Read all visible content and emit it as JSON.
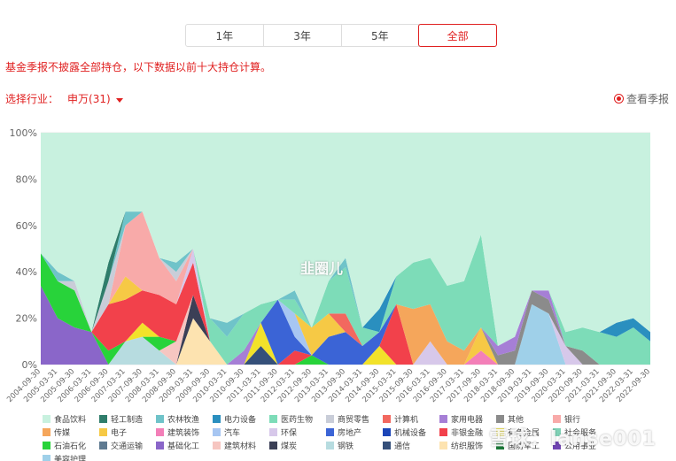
{
  "tabs": [
    {
      "label": "1年",
      "active": false
    },
    {
      "label": "3年",
      "active": false
    },
    {
      "label": "5年",
      "active": false
    },
    {
      "label": "全部",
      "active": true
    }
  ],
  "notice": "基金季报不披露全部持仓，以下数据以前十大持仓计算。",
  "industry": {
    "label": "选择行业：",
    "value": "申万(31)"
  },
  "report_link": "查看季报",
  "watermark": "雪球：lanse001",
  "center_mark": "韭圈儿",
  "chart_data": {
    "type": "area",
    "stacked": true,
    "ylim": [
      0,
      100
    ],
    "yticks": [
      "0%",
      "20%",
      "40%",
      "60%",
      "80%",
      "100%"
    ],
    "x": [
      "2004-09-30",
      "2005-03-31",
      "2005-09-30",
      "2006-03-31",
      "2006-09-30",
      "2007-03-31",
      "2007-09-30",
      "2008-03-31",
      "2008-09-30",
      "2009-03-31",
      "2009-09-30",
      "2010-03-31",
      "2010-09-30",
      "2011-03-31",
      "2011-09-30",
      "2012-03-31",
      "2012-09-30",
      "2013-03-31",
      "2013-09-30",
      "2014-03-31",
      "2014-09-30",
      "2015-03-31",
      "2015-09-30",
      "2016-03-31",
      "2016-09-30",
      "2017-03-31",
      "2017-09-30",
      "2018-03-31",
      "2018-09-30",
      "2019-03-31",
      "2019-09-30",
      "2020-03-31",
      "2020-09-30",
      "2021-03-31",
      "2021-09-30",
      "2022-03-31",
      "2022-09-30"
    ],
    "series": [
      {
        "name": "食品饮料",
        "color": "#c8f1df",
        "values": [
          20,
          18,
          14,
          20,
          18,
          14,
          6,
          10,
          8,
          0,
          0,
          6,
          4,
          0,
          0,
          4,
          0,
          0,
          4,
          0,
          0,
          0,
          0,
          4,
          0,
          0,
          8,
          60,
          40,
          44,
          52,
          44,
          40,
          38,
          40,
          42,
          60
        ]
      },
      {
        "name": "轻工制造",
        "color": "#2f7d6b",
        "values": [
          0,
          0,
          0,
          0,
          8,
          0,
          0,
          0,
          0,
          0,
          0,
          0,
          0,
          0,
          0,
          0,
          0,
          0,
          0,
          0,
          0,
          0,
          0,
          0,
          0,
          0,
          0,
          0,
          0,
          0,
          0,
          0,
          0,
          0,
          0,
          0,
          0
        ]
      },
      {
        "name": "农林牧渔",
        "color": "#6fc3c9",
        "values": [
          0,
          4,
          0,
          0,
          0,
          6,
          0,
          0,
          4,
          0,
          0,
          6,
          0,
          0,
          0,
          4,
          0,
          0,
          4,
          0,
          0,
          0,
          0,
          0,
          0,
          0,
          0,
          0,
          0,
          0,
          0,
          0,
          0,
          0,
          0,
          0,
          0
        ]
      },
      {
        "name": "电力设备",
        "color": "#2a8fbf",
        "values": [
          0,
          0,
          0,
          0,
          0,
          0,
          0,
          0,
          0,
          0,
          0,
          0,
          0,
          0,
          0,
          0,
          0,
          0,
          0,
          0,
          10,
          0,
          0,
          0,
          0,
          0,
          0,
          0,
          0,
          0,
          0,
          0,
          0,
          0,
          6,
          4,
          4
        ]
      },
      {
        "name": "医药生物",
        "color": "#7ddcb8",
        "values": [
          0,
          0,
          0,
          0,
          0,
          0,
          0,
          0,
          0,
          0,
          10,
          12,
          16,
          8,
          0,
          6,
          0,
          14,
          20,
          8,
          0,
          12,
          20,
          20,
          24,
          30,
          40,
          0,
          0,
          0,
          0,
          6,
          10,
          14,
          12,
          16,
          10
        ]
      },
      {
        "name": "商贸零售",
        "color": "#c9cdd8",
        "values": [
          0,
          0,
          4,
          0,
          10,
          0,
          0,
          0,
          4,
          0,
          0,
          0,
          0,
          0,
          0,
          0,
          0,
          0,
          0,
          0,
          0,
          0,
          0,
          0,
          0,
          0,
          0,
          0,
          0,
          0,
          0,
          0,
          0,
          0,
          0,
          0,
          0
        ]
      },
      {
        "name": "计算机",
        "color": "#f2685f",
        "values": [
          0,
          0,
          0,
          0,
          0,
          0,
          0,
          0,
          0,
          0,
          0,
          0,
          0,
          0,
          0,
          0,
          0,
          0,
          8,
          0,
          0,
          0,
          0,
          0,
          0,
          0,
          0,
          0,
          0,
          0,
          0,
          0,
          0,
          0,
          0,
          0,
          0
        ]
      },
      {
        "name": "家用电器",
        "color": "#a67fd6",
        "values": [
          0,
          0,
          0,
          0,
          0,
          0,
          0,
          0,
          0,
          0,
          0,
          0,
          6,
          0,
          0,
          0,
          0,
          0,
          0,
          0,
          0,
          0,
          0,
          0,
          0,
          0,
          0,
          4,
          6,
          0,
          4,
          0,
          0,
          0,
          0,
          0,
          0
        ]
      },
      {
        "name": "其他",
        "color": "#8b8b8b",
        "values": [
          0,
          0,
          0,
          0,
          0,
          0,
          0,
          0,
          0,
          0,
          0,
          0,
          0,
          0,
          0,
          0,
          0,
          0,
          0,
          0,
          0,
          0,
          0,
          0,
          0,
          0,
          0,
          4,
          6,
          6,
          6,
          0,
          6,
          0,
          0,
          0,
          0
        ]
      },
      {
        "name": "银行",
        "color": "#f8aaa9",
        "values": [
          0,
          0,
          0,
          0,
          0,
          22,
          34,
          16,
          10,
          0,
          0,
          0,
          0,
          0,
          0,
          0,
          0,
          0,
          0,
          0,
          0,
          0,
          0,
          0,
          0,
          0,
          0,
          0,
          0,
          0,
          0,
          0,
          0,
          0,
          0,
          0,
          0
        ]
      },
      {
        "name": "传媒",
        "color": "#f5a65b",
        "values": [
          0,
          0,
          0,
          0,
          0,
          0,
          0,
          0,
          0,
          0,
          0,
          0,
          0,
          0,
          0,
          0,
          0,
          0,
          0,
          0,
          0,
          0,
          24,
          16,
          10,
          6,
          0,
          0,
          0,
          0,
          0,
          0,
          0,
          0,
          0,
          0,
          0
        ]
      },
      {
        "name": "电子",
        "color": "#f6c945",
        "values": [
          0,
          0,
          0,
          0,
          0,
          10,
          0,
          0,
          0,
          0,
          0,
          0,
          0,
          0,
          0,
          0,
          12,
          10,
          0,
          0,
          0,
          0,
          0,
          0,
          0,
          0,
          10,
          0,
          0,
          0,
          0,
          0,
          0,
          0,
          0,
          0,
          0
        ]
      },
      {
        "name": "建筑装饰",
        "color": "#f37fb8",
        "values": [
          0,
          0,
          0,
          0,
          0,
          0,
          0,
          0,
          0,
          0,
          0,
          0,
          0,
          0,
          0,
          0,
          0,
          0,
          0,
          0,
          0,
          0,
          0,
          0,
          0,
          0,
          6,
          0,
          0,
          0,
          0,
          0,
          0,
          0,
          0,
          0,
          0
        ]
      },
      {
        "name": "汽车",
        "color": "#a7c6f2",
        "values": [
          0,
          0,
          0,
          0,
          0,
          0,
          0,
          0,
          0,
          0,
          0,
          0,
          0,
          0,
          0,
          10,
          0,
          0,
          0,
          0,
          0,
          0,
          0,
          0,
          0,
          0,
          0,
          0,
          0,
          0,
          0,
          0,
          0,
          0,
          0,
          0,
          0
        ]
      },
      {
        "name": "环保",
        "color": "#d7c8ea",
        "values": [
          0,
          0,
          0,
          0,
          0,
          0,
          0,
          0,
          0,
          6,
          0,
          0,
          0,
          0,
          0,
          0,
          0,
          0,
          0,
          0,
          0,
          0,
          0,
          10,
          0,
          0,
          0,
          0,
          0,
          0,
          0,
          8,
          0,
          0,
          0,
          0,
          0
        ]
      },
      {
        "name": "房地产",
        "color": "#3b64d6",
        "values": [
          0,
          0,
          0,
          0,
          0,
          0,
          0,
          0,
          0,
          0,
          0,
          0,
          0,
          0,
          28,
          6,
          0,
          12,
          14,
          8,
          6,
          0,
          0,
          0,
          0,
          0,
          0,
          0,
          0,
          0,
          0,
          0,
          0,
          0,
          0,
          0,
          0
        ]
      },
      {
        "name": "机械设备",
        "color": "#1c46b8",
        "values": [
          0,
          0,
          0,
          0,
          0,
          0,
          0,
          0,
          0,
          0,
          0,
          0,
          0,
          0,
          0,
          0,
          0,
          0,
          0,
          0,
          0,
          0,
          0,
          0,
          0,
          0,
          0,
          0,
          0,
          0,
          0,
          0,
          0,
          0,
          0,
          0,
          0
        ]
      },
      {
        "name": "非银金融",
        "color": "#f2414b",
        "values": [
          0,
          0,
          0,
          0,
          20,
          18,
          14,
          18,
          16,
          14,
          0,
          0,
          0,
          0,
          0,
          6,
          0,
          0,
          0,
          0,
          0,
          26,
          0,
          0,
          0,
          0,
          0,
          0,
          0,
          0,
          0,
          0,
          0,
          0,
          0,
          0,
          0
        ]
      },
      {
        "name": "有色金属",
        "color": "#f2e22a",
        "values": [
          0,
          0,
          0,
          0,
          0,
          0,
          6,
          0,
          0,
          0,
          0,
          0,
          0,
          10,
          0,
          0,
          0,
          0,
          0,
          0,
          8,
          0,
          0,
          0,
          0,
          0,
          0,
          0,
          0,
          0,
          0,
          0,
          0,
          0,
          0,
          0,
          0
        ]
      },
      {
        "name": "社会服务",
        "color": "#7fd1b5",
        "values": [
          0,
          0,
          0,
          0,
          0,
          0,
          0,
          0,
          0,
          0,
          0,
          0,
          0,
          0,
          0,
          0,
          0,
          0,
          0,
          0,
          0,
          0,
          0,
          0,
          0,
          0,
          0,
          0,
          0,
          0,
          0,
          0,
          0,
          0,
          0,
          0,
          0
        ]
      },
      {
        "name": "石油石化",
        "color": "#28d33a",
        "values": [
          14,
          16,
          16,
          0,
          6,
          0,
          0,
          6,
          0,
          0,
          0,
          0,
          0,
          0,
          0,
          0,
          4,
          0,
          0,
          0,
          0,
          0,
          0,
          0,
          0,
          0,
          0,
          0,
          0,
          0,
          0,
          0,
          0,
          0,
          0,
          0,
          0
        ]
      },
      {
        "name": "交通运输",
        "color": "#5e7a91",
        "values": [
          0,
          0,
          0,
          0,
          0,
          0,
          0,
          0,
          0,
          0,
          0,
          0,
          0,
          0,
          0,
          0,
          0,
          0,
          0,
          0,
          0,
          0,
          0,
          0,
          0,
          0,
          0,
          0,
          0,
          0,
          0,
          0,
          0,
          0,
          0,
          0,
          0
        ]
      },
      {
        "name": "基础化工",
        "color": "#8a66c9",
        "values": [
          34,
          20,
          16,
          14,
          0,
          0,
          0,
          0,
          0,
          0,
          0,
          0,
          0,
          0,
          0,
          0,
          0,
          0,
          0,
          0,
          0,
          0,
          0,
          0,
          0,
          0,
          0,
          0,
          0,
          0,
          0,
          0,
          0,
          0,
          0,
          0,
          0
        ]
      },
      {
        "name": "建筑材料",
        "color": "#f6c6c1",
        "values": [
          0,
          0,
          0,
          0,
          0,
          0,
          0,
          0,
          10,
          0,
          0,
          0,
          0,
          0,
          0,
          0,
          0,
          0,
          0,
          0,
          0,
          0,
          0,
          0,
          0,
          0,
          0,
          0,
          0,
          0,
          0,
          0,
          0,
          0,
          0,
          0,
          0
        ]
      },
      {
        "name": "煤炭",
        "color": "#3b3f56",
        "values": [
          0,
          0,
          0,
          0,
          0,
          0,
          0,
          0,
          0,
          10,
          0,
          0,
          0,
          0,
          0,
          0,
          0,
          0,
          0,
          0,
          0,
          0,
          0,
          0,
          0,
          0,
          0,
          0,
          0,
          0,
          0,
          0,
          0,
          0,
          0,
          0,
          0
        ]
      },
      {
        "name": "钢铁",
        "color": "#b7dce0",
        "values": [
          0,
          0,
          0,
          0,
          0,
          10,
          12,
          6,
          0,
          0,
          0,
          0,
          0,
          0,
          0,
          0,
          0,
          0,
          0,
          0,
          0,
          0,
          0,
          0,
          0,
          0,
          0,
          0,
          0,
          0,
          0,
          0,
          0,
          0,
          0,
          0,
          0
        ]
      },
      {
        "name": "通信",
        "color": "#35507a",
        "values": [
          0,
          0,
          0,
          0,
          0,
          0,
          0,
          0,
          0,
          0,
          0,
          0,
          0,
          8,
          0,
          0,
          0,
          0,
          0,
          0,
          0,
          0,
          0,
          0,
          0,
          0,
          0,
          0,
          0,
          0,
          0,
          0,
          0,
          0,
          0,
          0,
          0
        ]
      },
      {
        "name": "纺织服饰",
        "color": "#fde3b0",
        "values": [
          0,
          0,
          0,
          0,
          0,
          0,
          0,
          0,
          0,
          20,
          10,
          0,
          0,
          0,
          0,
          0,
          0,
          0,
          0,
          0,
          0,
          0,
          0,
          0,
          0,
          0,
          0,
          0,
          0,
          0,
          0,
          0,
          0,
          0,
          0,
          0,
          0
        ]
      },
      {
        "name": "国防军工",
        "color": "#1b7a38",
        "values": [
          0,
          0,
          0,
          0,
          0,
          0,
          0,
          0,
          0,
          0,
          0,
          0,
          0,
          0,
          0,
          0,
          0,
          0,
          0,
          0,
          0,
          0,
          0,
          0,
          0,
          0,
          0,
          0,
          0,
          0,
          0,
          0,
          0,
          0,
          0,
          0,
          0
        ]
      },
      {
        "name": "公用事业",
        "color": "#7044b3",
        "values": [
          0,
          0,
          0,
          0,
          0,
          0,
          0,
          0,
          0,
          0,
          0,
          0,
          0,
          0,
          0,
          0,
          0,
          0,
          0,
          0,
          0,
          0,
          0,
          0,
          0,
          0,
          0,
          0,
          0,
          0,
          0,
          0,
          0,
          0,
          0,
          0,
          0
        ]
      },
      {
        "name": "美容护理",
        "color": "#9fd0e9",
        "values": [
          0,
          0,
          0,
          0,
          0,
          0,
          0,
          0,
          0,
          0,
          0,
          0,
          0,
          0,
          0,
          0,
          0,
          0,
          0,
          0,
          0,
          0,
          0,
          0,
          0,
          0,
          0,
          0,
          0,
          26,
          22,
          0,
          0,
          0,
          0,
          0,
          0
        ]
      }
    ]
  }
}
